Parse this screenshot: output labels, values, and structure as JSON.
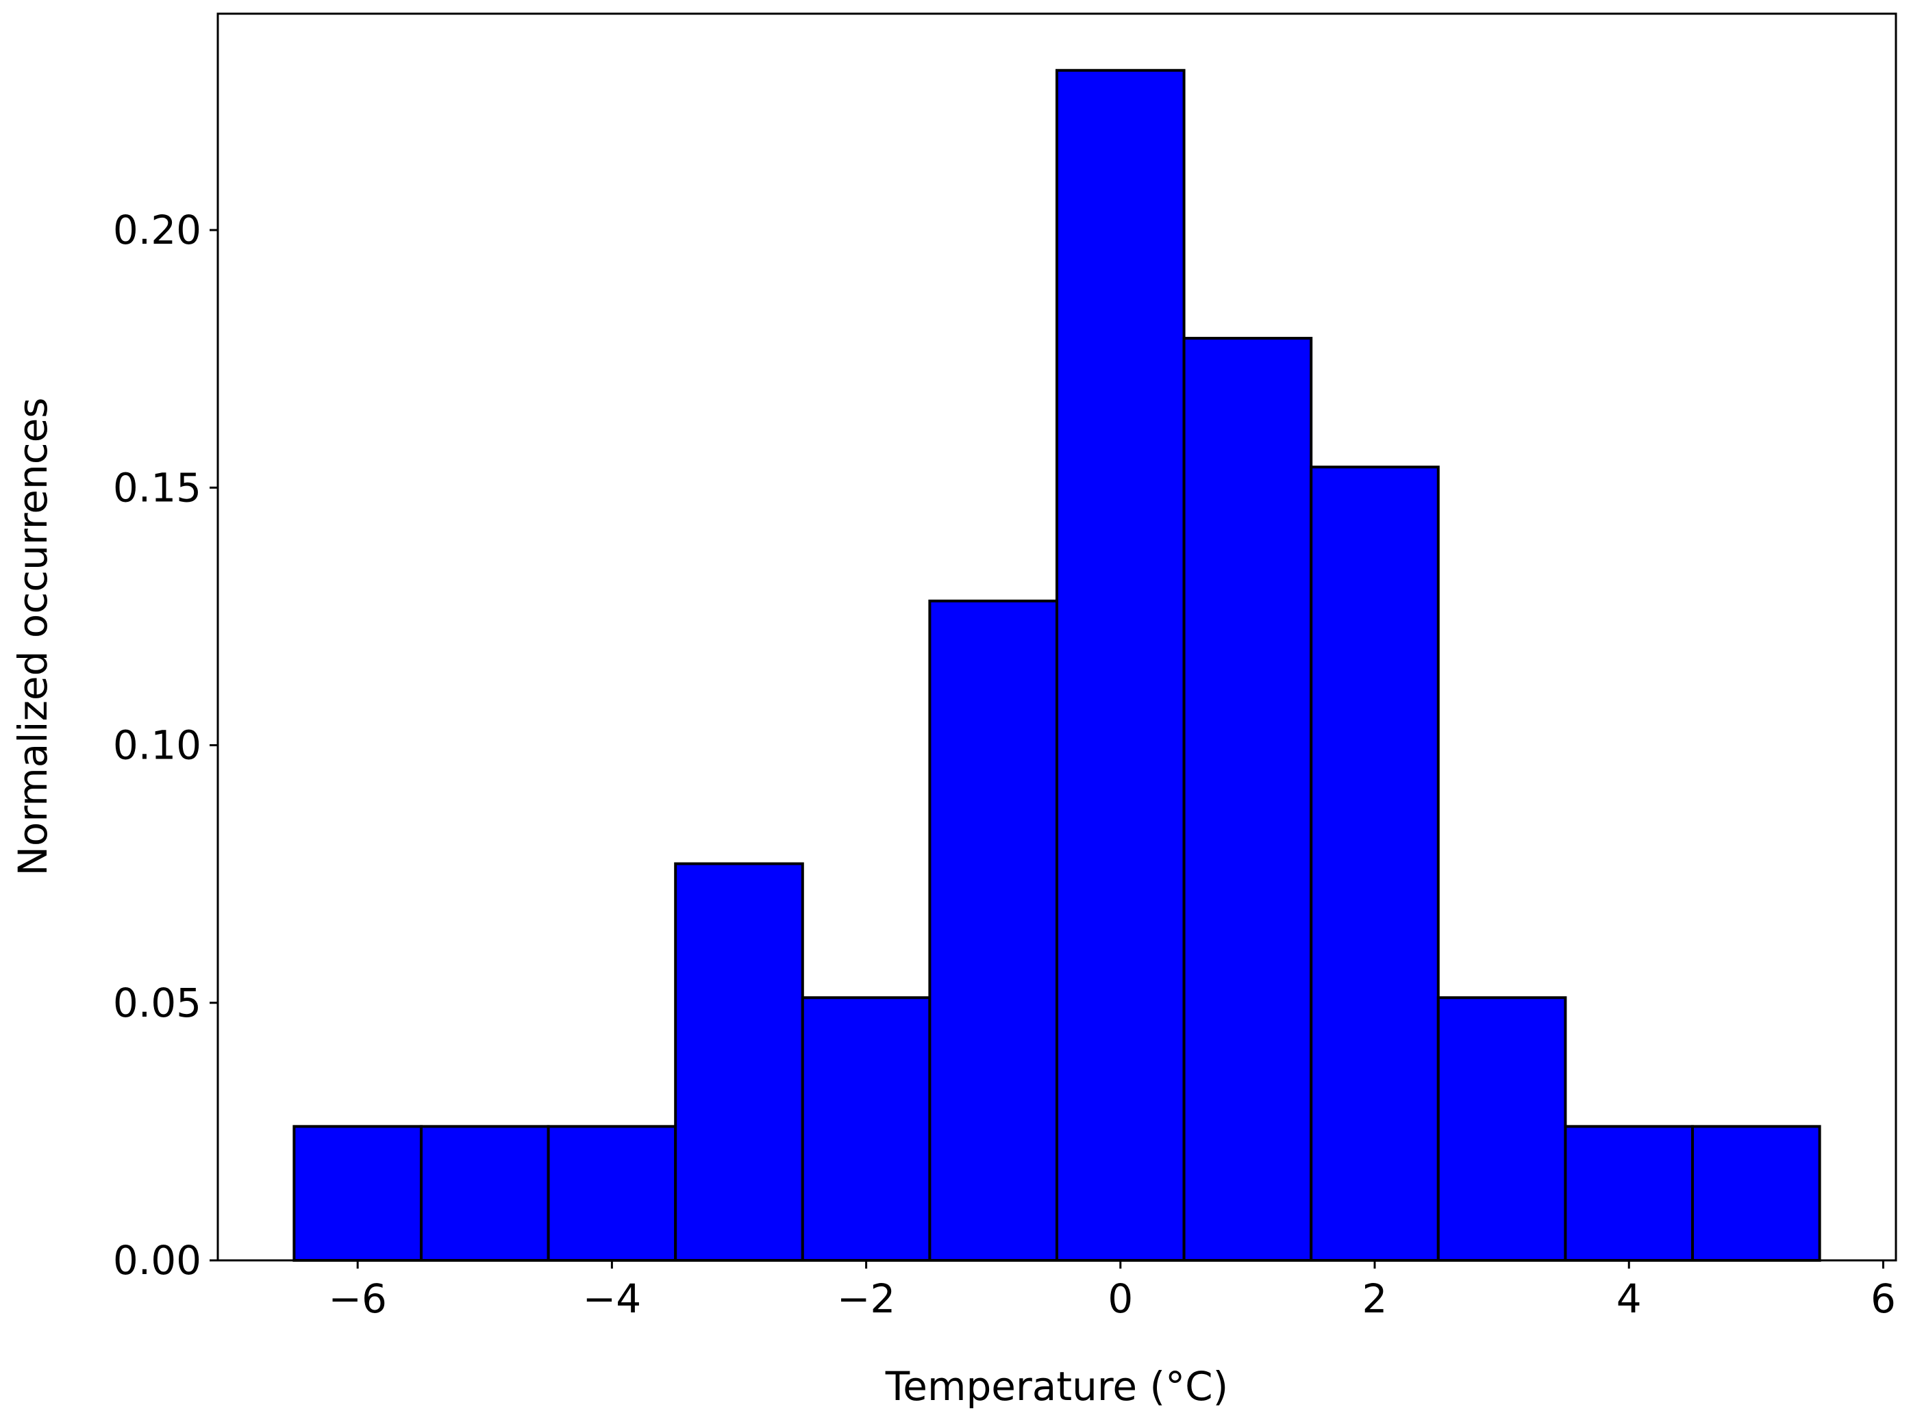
{
  "chart_data": {
    "type": "histogram",
    "x_label": "Temperature (°C)",
    "y_label": "Normalized occurrences",
    "bins": [
      -6.5,
      -5.5,
      -4.5,
      -3.5,
      -2.5,
      -1.5,
      -0.5,
      0.5,
      1.5,
      2.5,
      3.5,
      4.5,
      5.5
    ],
    "values": [
      0.026,
      0.026,
      0.026,
      0.077,
      0.051,
      0.128,
      0.231,
      0.179,
      0.154,
      0.051,
      0.026,
      0.026
    ],
    "color": "#0000ff",
    "edgecolor": "#000000",
    "xlim": [
      -7.1,
      6.1
    ],
    "ylim": [
      0,
      0.242
    ],
    "xticks": [
      {
        "value": -6,
        "label": "−6"
      },
      {
        "value": -4,
        "label": "−4"
      },
      {
        "value": -2,
        "label": "−2"
      },
      0,
      2,
      4,
      6
    ],
    "yticks": [
      {
        "value": 0,
        "label": "0.00"
      },
      {
        "value": 0.05,
        "label": "0.05"
      },
      {
        "value": 0.1,
        "label": "0.10"
      },
      {
        "value": 0.15,
        "label": "0.15"
      },
      {
        "value": 0.2,
        "label": "0.20"
      }
    ],
    "grid": false
  }
}
